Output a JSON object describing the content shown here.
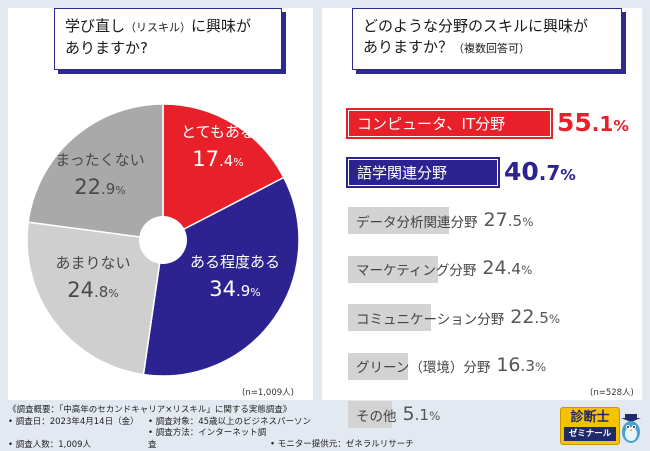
{
  "left": {
    "question_line1_a": "学び直し",
    "question_line1_b": "（リスキル）",
    "question_line1_c": "に興味が",
    "question_line2": "ありますか?",
    "n_note": "(n=1,009人)"
  },
  "right": {
    "question_line1": "どのような分野のスキルに興味が",
    "question_line2_a": "ありますか？",
    "question_line2_b": "（複数回答可）",
    "n_note": "(n=528人)"
  },
  "colors": {
    "red": "#e8202a",
    "navy": "#2d2390",
    "gray_dark": "#a9a9a9",
    "gray_light": "#cfcfcf",
    "bar_gray": "#d3d3d3"
  },
  "chart_data": [
    {
      "type": "pie",
      "title": "学び直し（リスキル）に興味がありますか?",
      "unit": "%",
      "slices": [
        {
          "label": "とてもある",
          "value": 17.4,
          "color": "#e8202a"
        },
        {
          "label": "ある程度ある",
          "value": 34.9,
          "color": "#2d2390"
        },
        {
          "label": "あまりない",
          "value": 24.8,
          "color": "#cfcfcf"
        },
        {
          "label": "まったくない",
          "value": 22.9,
          "color": "#a9a9a9"
        }
      ]
    },
    {
      "type": "bar",
      "orientation": "horizontal",
      "title": "どのような分野のスキルに興味がありますか？（複数回答可）",
      "unit": "%",
      "categories": [
        "コンピュータ、IT分野",
        "語学関連分野",
        "データ分析関連分野",
        "マーケティング分野",
        "コミュニケーション分野",
        "グリーン（環境）分野",
        "その他"
      ],
      "values": [
        55.1,
        40.7,
        27.5,
        24.4,
        22.5,
        16.3,
        5.1
      ]
    }
  ],
  "footer": {
    "line1": "《調査概要：「中高年のセカンドキャリア×リスキル」に関する実態調査》",
    "line2a": "• 調査日：2023年4月14日（金）",
    "line2b": "• 調査対象：45歳以上のビジネスパーソン",
    "line3a": "• 調査人数：1,009人",
    "line3b": "• 調査方法：インターネット調査",
    "line3c": "• モニター提供元：ゼネラルリサーチ"
  },
  "logo": {
    "line1": "診断士",
    "line2": "ゼミナール"
  }
}
